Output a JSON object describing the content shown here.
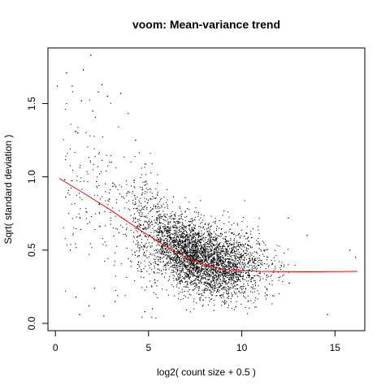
{
  "chart_data": {
    "type": "scatter",
    "title": "voom: Mean-variance trend",
    "xlabel": "log2( count size + 0.5 )",
    "ylabel": "Sqrt( standard deviation )",
    "xlim": [
      -0.4,
      16.6
    ],
    "ylim": [
      -0.05,
      1.88
    ],
    "x_ticks": [
      0,
      5,
      10,
      15
    ],
    "x_tick_labels": [
      "0",
      "5",
      "10",
      "15"
    ],
    "y_ticks": [
      0.0,
      0.5,
      1.0,
      1.5
    ],
    "y_tick_labels": [
      "0.0",
      "0.5",
      "1.0",
      "1.5"
    ],
    "grid": false,
    "point_color": "#000000",
    "trend_color": "#ff0000",
    "trend_line": {
      "x": [
        0.2,
        1.5,
        3.0,
        4.5,
        6.0,
        7.0,
        8.0,
        9.0,
        10.0,
        11.0,
        12.0,
        13.0,
        14.0,
        15.0,
        16.2
      ],
      "y": [
        0.99,
        0.89,
        0.77,
        0.64,
        0.52,
        0.45,
        0.4,
        0.37,
        0.36,
        0.355,
        0.353,
        0.352,
        0.352,
        0.353,
        0.355
      ]
    },
    "points": {
      "x": [
        0.1,
        0.6,
        0.9,
        1.5,
        1.9,
        2.5,
        2.0,
        1.4,
        1.2,
        2.3,
        2.8,
        3.5,
        0.5,
        3.0,
        4.3,
        3.9,
        1.1,
        1.8,
        2.6,
        3.2,
        4.8,
        5.2,
        1.3,
        0.8,
        2.1,
        13.5,
        15.8,
        16.1,
        14.6,
        12.5
      ],
      "y": [
        1.62,
        1.71,
        1.62,
        1.73,
        1.83,
        1.63,
        1.45,
        1.52,
        1.3,
        1.58,
        1.55,
        1.57,
        0.98,
        1.1,
        1.25,
        0.9,
        0.18,
        0.12,
        0.05,
        0.15,
        0.08,
        0.1,
        0.06,
        0.5,
        0.24,
        0.6,
        0.5,
        0.45,
        0.06,
        0.72
      ]
    }
  }
}
